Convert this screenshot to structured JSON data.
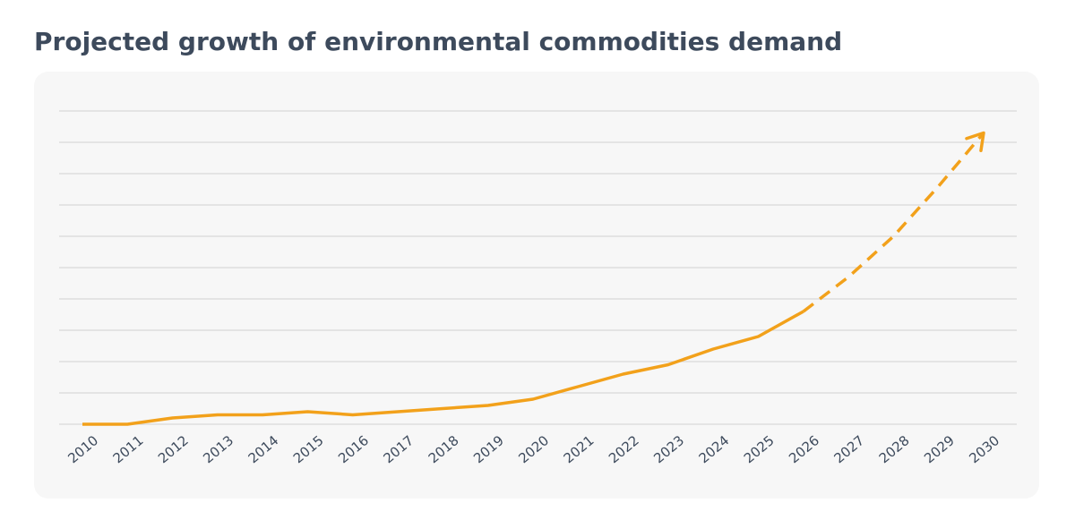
{
  "chart_data": {
    "type": "line",
    "title": "Projected growth of environmental commodities demand",
    "categories": [
      "2010",
      "2011",
      "2012",
      "2013",
      "2014",
      "2015",
      "2016",
      "2017",
      "2018",
      "2019",
      "2020",
      "2021",
      "2022",
      "2023",
      "2024",
      "2025",
      "2026",
      "2027",
      "2028",
      "2029",
      "2030"
    ],
    "series": [
      {
        "color": "#f2a11b",
        "style": "solid",
        "values": [
          0,
          0,
          0.2,
          0.3,
          0.3,
          0.4,
          0.3,
          0.4,
          0.5,
          0.6,
          0.8,
          1.2,
          1.6,
          1.9,
          2.4,
          2.8,
          3.6,
          null,
          null,
          null,
          null
        ]
      },
      {
        "color": "#f2a11b",
        "style": "dashed",
        "values": [
          null,
          null,
          null,
          null,
          null,
          null,
          null,
          null,
          null,
          null,
          null,
          null,
          null,
          null,
          null,
          null,
          3.6,
          4.7,
          6.0,
          7.6,
          9.3
        ]
      }
    ],
    "ylim": [
      0,
      10
    ],
    "yticks": [
      0,
      1,
      2,
      3,
      4,
      5,
      6,
      7,
      8,
      9,
      10
    ],
    "grid": true
  }
}
